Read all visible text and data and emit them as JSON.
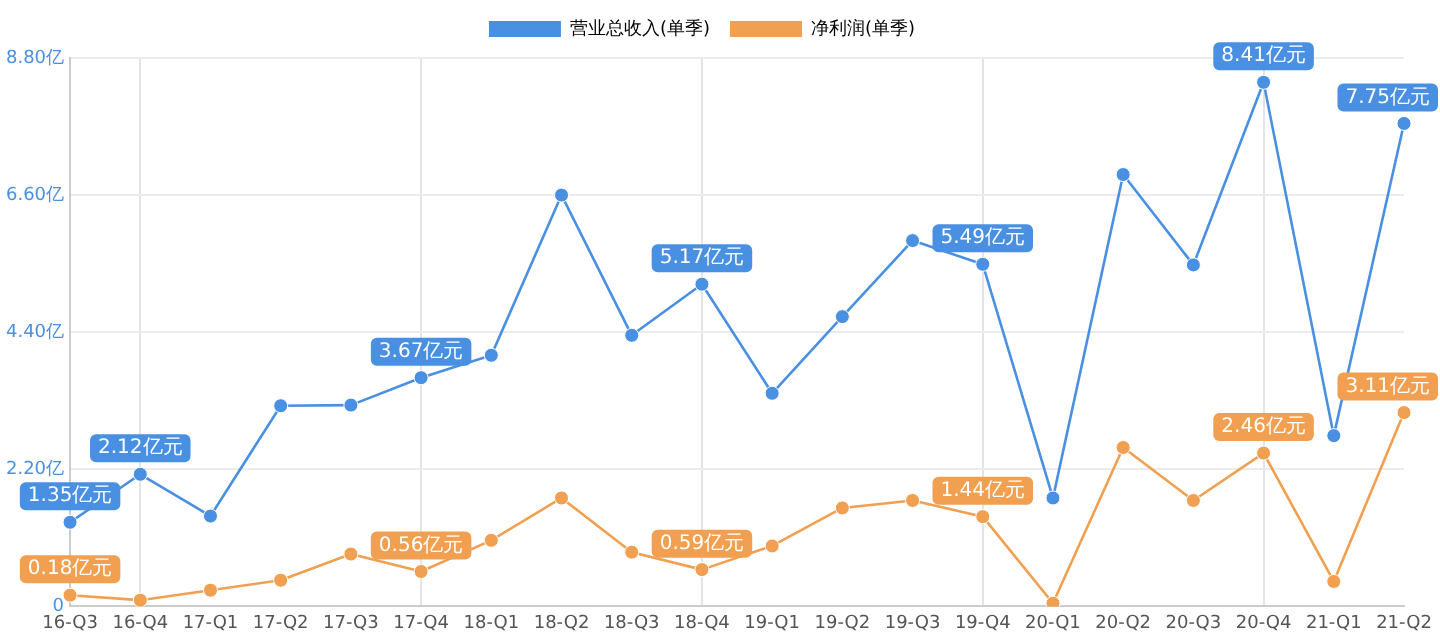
{
  "chart_data": {
    "type": "line",
    "categories": [
      "16-Q3",
      "16-Q4",
      "17-Q1",
      "17-Q2",
      "17-Q3",
      "17-Q4",
      "18-Q1",
      "18-Q2",
      "18-Q3",
      "18-Q4",
      "19-Q1",
      "19-Q2",
      "19-Q3",
      "19-Q4",
      "20-Q1",
      "20-Q2",
      "20-Q3",
      "20-Q4",
      "21-Q1",
      "21-Q2"
    ],
    "series": [
      {
        "name": "营业总收入(单季)",
        "color": "#4a90e2",
        "values": [
          1.35,
          2.12,
          1.45,
          3.22,
          3.23,
          3.67,
          4.03,
          6.6,
          4.35,
          5.17,
          3.42,
          4.65,
          5.87,
          5.49,
          1.74,
          6.93,
          5.48,
          8.41,
          2.74,
          7.75
        ],
        "value_labels": [
          "1.35亿元",
          "2.12亿元",
          null,
          null,
          null,
          "3.67亿元",
          null,
          null,
          null,
          "5.17亿元",
          null,
          null,
          null,
          "5.49亿元",
          null,
          null,
          null,
          "8.41亿元",
          null,
          "7.75亿元"
        ]
      },
      {
        "name": "净利润(单季)",
        "color": "#f0a050",
        "values": [
          0.18,
          0.1,
          0.26,
          0.42,
          0.84,
          0.56,
          1.06,
          1.74,
          0.87,
          0.59,
          0.97,
          1.58,
          1.7,
          1.44,
          0.05,
          2.55,
          1.7,
          2.46,
          0.4,
          3.11
        ],
        "value_labels": [
          "0.18亿元",
          null,
          null,
          null,
          null,
          "0.56亿元",
          null,
          null,
          null,
          "0.59亿元",
          null,
          null,
          null,
          "1.44亿元",
          null,
          null,
          null,
          "2.46亿元",
          null,
          "3.11亿元"
        ]
      }
    ],
    "ylim": [
      0,
      8.8
    ],
    "yticks": [
      {
        "value": 0,
        "label": "0"
      },
      {
        "value": 2.2,
        "label": "2.20亿"
      },
      {
        "value": 4.4,
        "label": "4.40亿"
      },
      {
        "value": 6.6,
        "label": "6.60亿"
      },
      {
        "value": 8.8,
        "label": "8.80亿"
      }
    ],
    "grid": true,
    "legend": "top",
    "marker": "circle",
    "line_style": "solid"
  }
}
